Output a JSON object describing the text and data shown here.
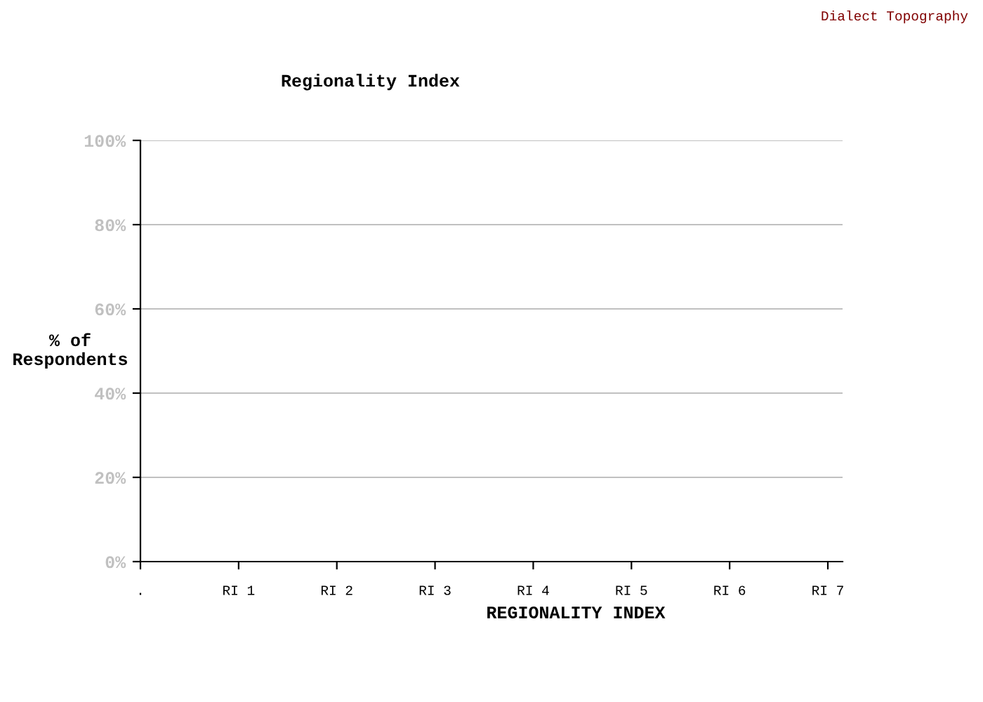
{
  "chart_data": {
    "type": "bar",
    "title": "Regionality Index",
    "xlabel": "REGIONALITY INDEX",
    "ylabel": "% of\nRespondents",
    "annotations": [
      "Dialect Topography"
    ],
    "categories": [
      ".",
      "RI 1",
      "RI 2",
      "RI 3",
      "RI 4",
      "RI 5",
      "RI 6",
      "RI 7"
    ],
    "values": [
      null,
      null,
      null,
      null,
      null,
      null,
      null,
      null
    ],
    "ylim": [
      0,
      100
    ],
    "yticks": [
      {
        "value": 0,
        "label": "0%"
      },
      {
        "value": 20,
        "label": "20%"
      },
      {
        "value": 40,
        "label": "40%"
      },
      {
        "value": 60,
        "label": "60%"
      },
      {
        "value": 80,
        "label": "80%"
      },
      {
        "value": 100,
        "label": "100%"
      }
    ],
    "grid": "y",
    "legend": false
  }
}
